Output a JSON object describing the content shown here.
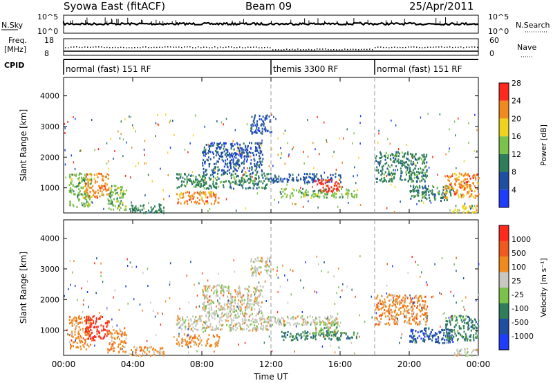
{
  "header": {
    "title": "Syowa East (fitACF)",
    "beam": "Beam 09",
    "date": "25/Apr/2011"
  },
  "top_panels": {
    "nsky_label": "N.Sky",
    "nsearch_label": "N.Search",
    "nsky_ticks": [
      "10^5",
      "10^0"
    ],
    "freq_label_line1": "Freq.",
    "freq_label_line2": "[MHz]",
    "freq_ticks": [
      "18",
      "8"
    ],
    "nave_ticks": [
      "60",
      "0"
    ],
    "nave_label": "Nave",
    "cpid_label": "CPID"
  },
  "cpid_segments": [
    {
      "label": "normal (fast) 151 RF",
      "start_hour": 0,
      "end_hour": 12
    },
    {
      "label": "themis 3300 RF",
      "start_hour": 12,
      "end_hour": 18
    },
    {
      "label": "normal (fast) 151 RF",
      "start_hour": 18,
      "end_hour": 24
    }
  ],
  "axes": {
    "ylabel": "Slant Range [km]",
    "yticks": [
      "1000",
      "2000",
      "3000",
      "4000"
    ],
    "xticks": [
      "00:00",
      "04:00",
      "08:00",
      "12:00",
      "16:00",
      "20:00",
      "00:00"
    ],
    "xlabel": "Time UT"
  },
  "chart_data": [
    {
      "type": "heatmap",
      "name": "power",
      "x_range_hours": [
        0,
        24
      ],
      "y_range_km": [
        180,
        4600
      ],
      "colorbar_label": "Power [dB]",
      "colorbar_ticks": [
        "4",
        "8",
        "12",
        "16",
        "20",
        "24",
        "28"
      ],
      "colors": [
        "#1f3cff",
        "#1f4fa0",
        "#2f7d5a",
        "#7cc24a",
        "#f0d21e",
        "#f08a1e",
        "#ff2a1e"
      ],
      "patches": [
        {
          "t0": 0.3,
          "t1": 1.6,
          "r0": 400,
          "r1": 1500,
          "level": 3
        },
        {
          "t0": 1.2,
          "t1": 2.6,
          "r0": 700,
          "r1": 1500,
          "level": 5
        },
        {
          "t0": 2.5,
          "t1": 3.6,
          "r0": 300,
          "r1": 1100,
          "level": 3
        },
        {
          "t0": 3.8,
          "t1": 5.8,
          "r0": 200,
          "r1": 500,
          "level": 2
        },
        {
          "t0": 6.5,
          "t1": 9.0,
          "r0": 500,
          "r1": 900,
          "level": 5
        },
        {
          "t0": 6.5,
          "t1": 12.0,
          "r0": 1000,
          "r1": 1500,
          "level": 2
        },
        {
          "t0": 8.0,
          "t1": 11.5,
          "r0": 1500,
          "r1": 2500,
          "level": 1
        },
        {
          "t0": 10.8,
          "t1": 12.0,
          "r0": 2800,
          "r1": 3400,
          "level": 1
        },
        {
          "t0": 12.0,
          "t1": 16.0,
          "r0": 1200,
          "r1": 1500,
          "level": 1
        },
        {
          "t0": 12.5,
          "t1": 17.0,
          "r0": 700,
          "r1": 1000,
          "level": 3
        },
        {
          "t0": 14.5,
          "t1": 16.0,
          "r0": 900,
          "r1": 1300,
          "level": 6
        },
        {
          "t0": 18.0,
          "t1": 21.0,
          "r0": 1200,
          "r1": 2200,
          "level": 2
        },
        {
          "t0": 20.0,
          "t1": 22.5,
          "r0": 600,
          "r1": 1100,
          "level": 2
        },
        {
          "t0": 22.0,
          "t1": 24.0,
          "r0": 700,
          "r1": 1500,
          "level": 5
        },
        {
          "t0": 22.5,
          "t1": 24.0,
          "r0": 200,
          "r1": 450,
          "level": 4
        }
      ]
    },
    {
      "type": "heatmap",
      "name": "velocity",
      "x_range_hours": [
        0,
        24
      ],
      "y_range_km": [
        180,
        4600
      ],
      "colorbar_label": "Velocity [m s⁻¹]",
      "colorbar_ticks": [
        "1000",
        "500",
        "100",
        "25",
        "-25",
        "-100",
        "-500",
        "-1000"
      ],
      "colors": [
        "#1f3cff",
        "#1f4fa0",
        "#2f7d5a",
        "#7cc24a",
        "#c8c8c0",
        "#f08a1e",
        "#f05a1e",
        "#ff2a1e"
      ],
      "patches": [
        {
          "t0": 0.3,
          "t1": 1.6,
          "r0": 400,
          "r1": 1500,
          "level": 5
        },
        {
          "t0": 1.2,
          "t1": 2.6,
          "r0": 700,
          "r1": 1500,
          "level": 7
        },
        {
          "t0": 2.5,
          "t1": 3.6,
          "r0": 300,
          "r1": 1100,
          "level": 5
        },
        {
          "t0": 3.8,
          "t1": 5.8,
          "r0": 200,
          "r1": 500,
          "level": 5
        },
        {
          "t0": 6.5,
          "t1": 9.0,
          "r0": 500,
          "r1": 900,
          "level": 5
        },
        {
          "t0": 6.5,
          "t1": 12.0,
          "r0": 1000,
          "r1": 1500,
          "level": 4
        },
        {
          "t0": 8.0,
          "t1": 11.5,
          "r0": 1500,
          "r1": 2500,
          "level": 4
        },
        {
          "t0": 10.8,
          "t1": 12.0,
          "r0": 2800,
          "r1": 3400,
          "level": 4
        },
        {
          "t0": 12.0,
          "t1": 16.0,
          "r0": 1200,
          "r1": 1500,
          "level": 4
        },
        {
          "t0": 12.5,
          "t1": 17.0,
          "r0": 700,
          "r1": 1000,
          "level": 2
        },
        {
          "t0": 14.5,
          "t1": 16.0,
          "r0": 900,
          "r1": 1300,
          "level": 3
        },
        {
          "t0": 18.0,
          "t1": 21.0,
          "r0": 1200,
          "r1": 2200,
          "level": 5
        },
        {
          "t0": 20.0,
          "t1": 22.5,
          "r0": 600,
          "r1": 1100,
          "level": 1
        },
        {
          "t0": 22.0,
          "t1": 24.0,
          "r0": 700,
          "r1": 1500,
          "level": 2
        },
        {
          "t0": 22.5,
          "t1": 24.0,
          "r0": 200,
          "r1": 450,
          "level": 4
        }
      ]
    }
  ]
}
